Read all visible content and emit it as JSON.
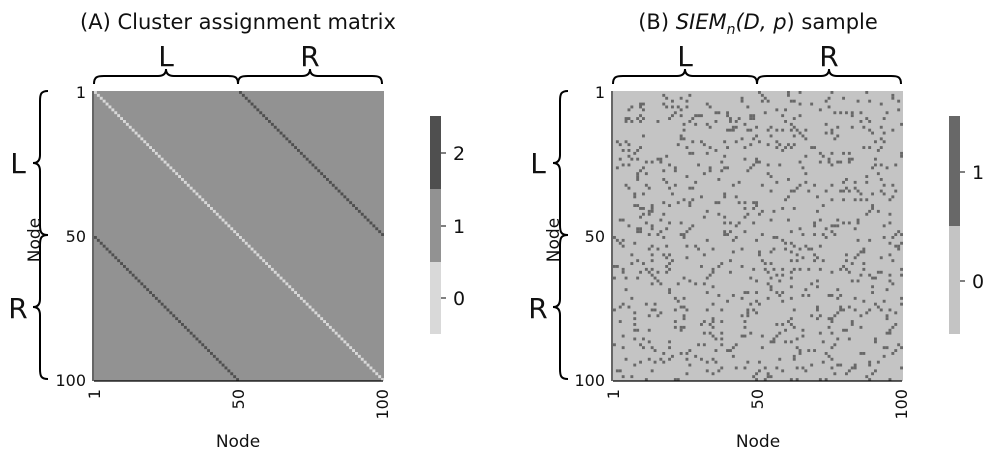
{
  "chart_data": [
    {
      "type": "heatmap",
      "title": "(A) Cluster assignment matrix",
      "n": 100,
      "xlabel": "Node",
      "ylabel": "Node",
      "xticks": [
        "1",
        "50",
        "100"
      ],
      "yticks": [
        "1",
        "50",
        "100"
      ],
      "groups": [
        {
          "label": "L",
          "range": [
            1,
            50
          ]
        },
        {
          "label": "R",
          "range": [
            51,
            100
          ]
        }
      ],
      "values_description_rule": {
        "default": 1,
        "main_diagonal": 0,
        "cross_block_diagonals": 2
      },
      "colorbar": {
        "ticks": [
          "0",
          "1",
          "2"
        ],
        "levels": [
          0,
          1,
          2
        ]
      },
      "colors": {
        "0": "#d9d9d9",
        "1": "#929292",
        "2": "#4f4f4f"
      }
    },
    {
      "type": "heatmap",
      "title_parts": {
        "prefix": "(B) ",
        "name": "SIEM",
        "sub": "n",
        "args_open": "(D, ",
        "vec": "p",
        "args_close": ")",
        "suffix": " sample"
      },
      "n": 100,
      "xlabel": "Node",
      "ylabel": "Node",
      "xticks": [
        "1",
        "50",
        "100"
      ],
      "yticks": [
        "1",
        "50",
        "100"
      ],
      "groups": [
        {
          "label": "L",
          "range": [
            1,
            50
          ]
        },
        {
          "label": "R",
          "range": [
            51,
            100
          ]
        }
      ],
      "edge_density": 0.08,
      "symmetric": true,
      "colorbar": {
        "ticks": [
          "0",
          "1"
        ],
        "levels": [
          0,
          1
        ]
      },
      "colors": {
        "0": "#c4c4c4",
        "1": "#686868"
      }
    }
  ]
}
